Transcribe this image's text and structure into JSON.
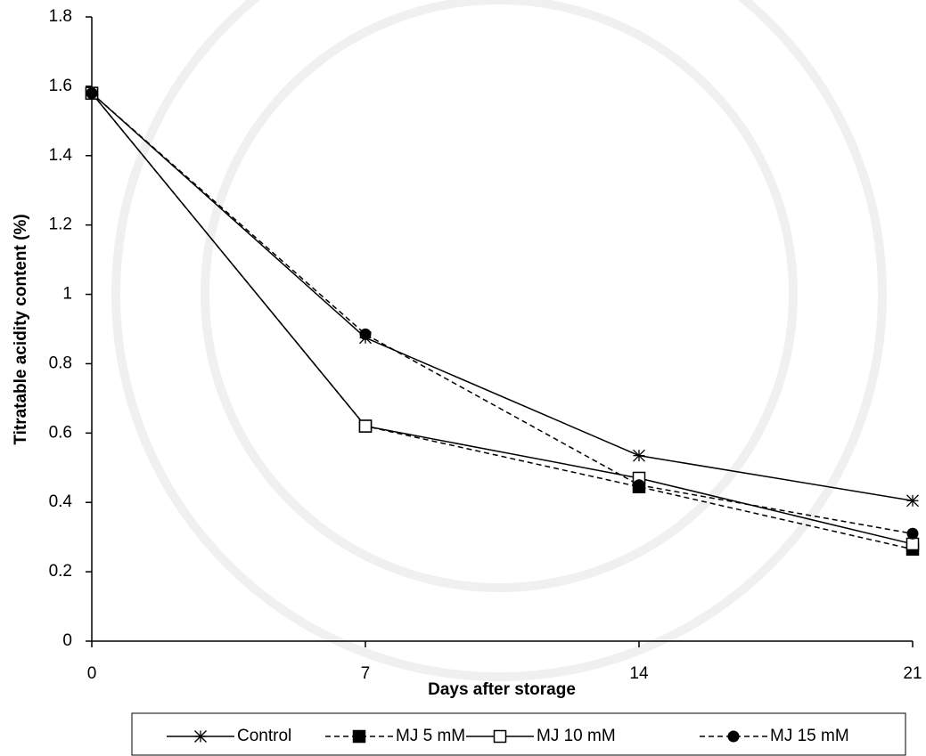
{
  "chart_data": {
    "type": "line",
    "x_label": "Days after storage",
    "y_label": "Titratable acidity content (%)",
    "x": [
      0,
      7,
      14,
      21
    ],
    "xlim": [
      0,
      21
    ],
    "xticks": [
      0,
      7,
      14,
      21
    ],
    "ylim": [
      0,
      1.8
    ],
    "yticks": [
      0,
      0.2,
      0.4,
      0.6,
      0.8,
      1,
      1.2,
      1.4,
      1.6,
      1.8
    ],
    "legend": "bottom",
    "series": [
      {
        "name": "Control",
        "color": "#000000",
        "dash": false,
        "marker": "asterisk",
        "values": [
          1.58,
          0.875,
          0.535,
          0.405
        ]
      },
      {
        "name": "MJ 5 mM",
        "color": "#000000",
        "dash": true,
        "marker": "filled-square",
        "values": [
          1.58,
          0.62,
          0.445,
          0.265
        ]
      },
      {
        "name": "MJ 10 mM",
        "color": "#000000",
        "dash": false,
        "marker": "open-square",
        "values": [
          1.58,
          0.62,
          0.47,
          0.28
        ]
      },
      {
        "name": "MJ 15 mM",
        "color": "#000000",
        "dash": true,
        "marker": "filled-circle",
        "values": [
          1.58,
          0.885,
          0.45,
          0.31
        ]
      }
    ]
  }
}
